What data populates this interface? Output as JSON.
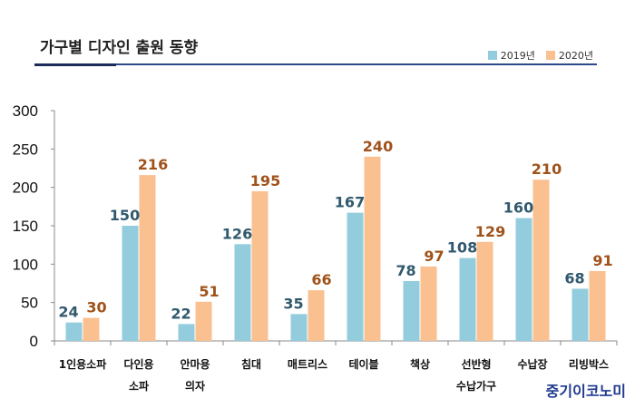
{
  "title": "가구별 디자인 출원 동향",
  "brand": "중기이코노미",
  "colors": {
    "s2019": "#93CDDD",
    "s2020": "#FAC090",
    "label2019": "#31596E",
    "label2020": "#A0521A"
  },
  "chart_data": {
    "type": "bar",
    "categories": [
      [
        "1인용소파"
      ],
      [
        "다인용",
        "소파"
      ],
      [
        "안마용",
        "의자"
      ],
      [
        "침대"
      ],
      [
        "매트리스"
      ],
      [
        "테이블"
      ],
      [
        "책상"
      ],
      [
        "선반형",
        "수납가구"
      ],
      [
        "수납장"
      ],
      [
        "리빙박스"
      ]
    ],
    "series": [
      {
        "name": "2019년",
        "values": [
          24,
          150,
          22,
          126,
          35,
          167,
          78,
          108,
          160,
          68
        ]
      },
      {
        "name": "2020년",
        "values": [
          30,
          216,
          51,
          195,
          66,
          240,
          97,
          129,
          210,
          91
        ]
      }
    ],
    "ylim": [
      0,
      300
    ],
    "yticks": [
      0,
      50,
      100,
      150,
      200,
      250,
      300
    ],
    "legend": "top-right",
    "grid": false
  }
}
